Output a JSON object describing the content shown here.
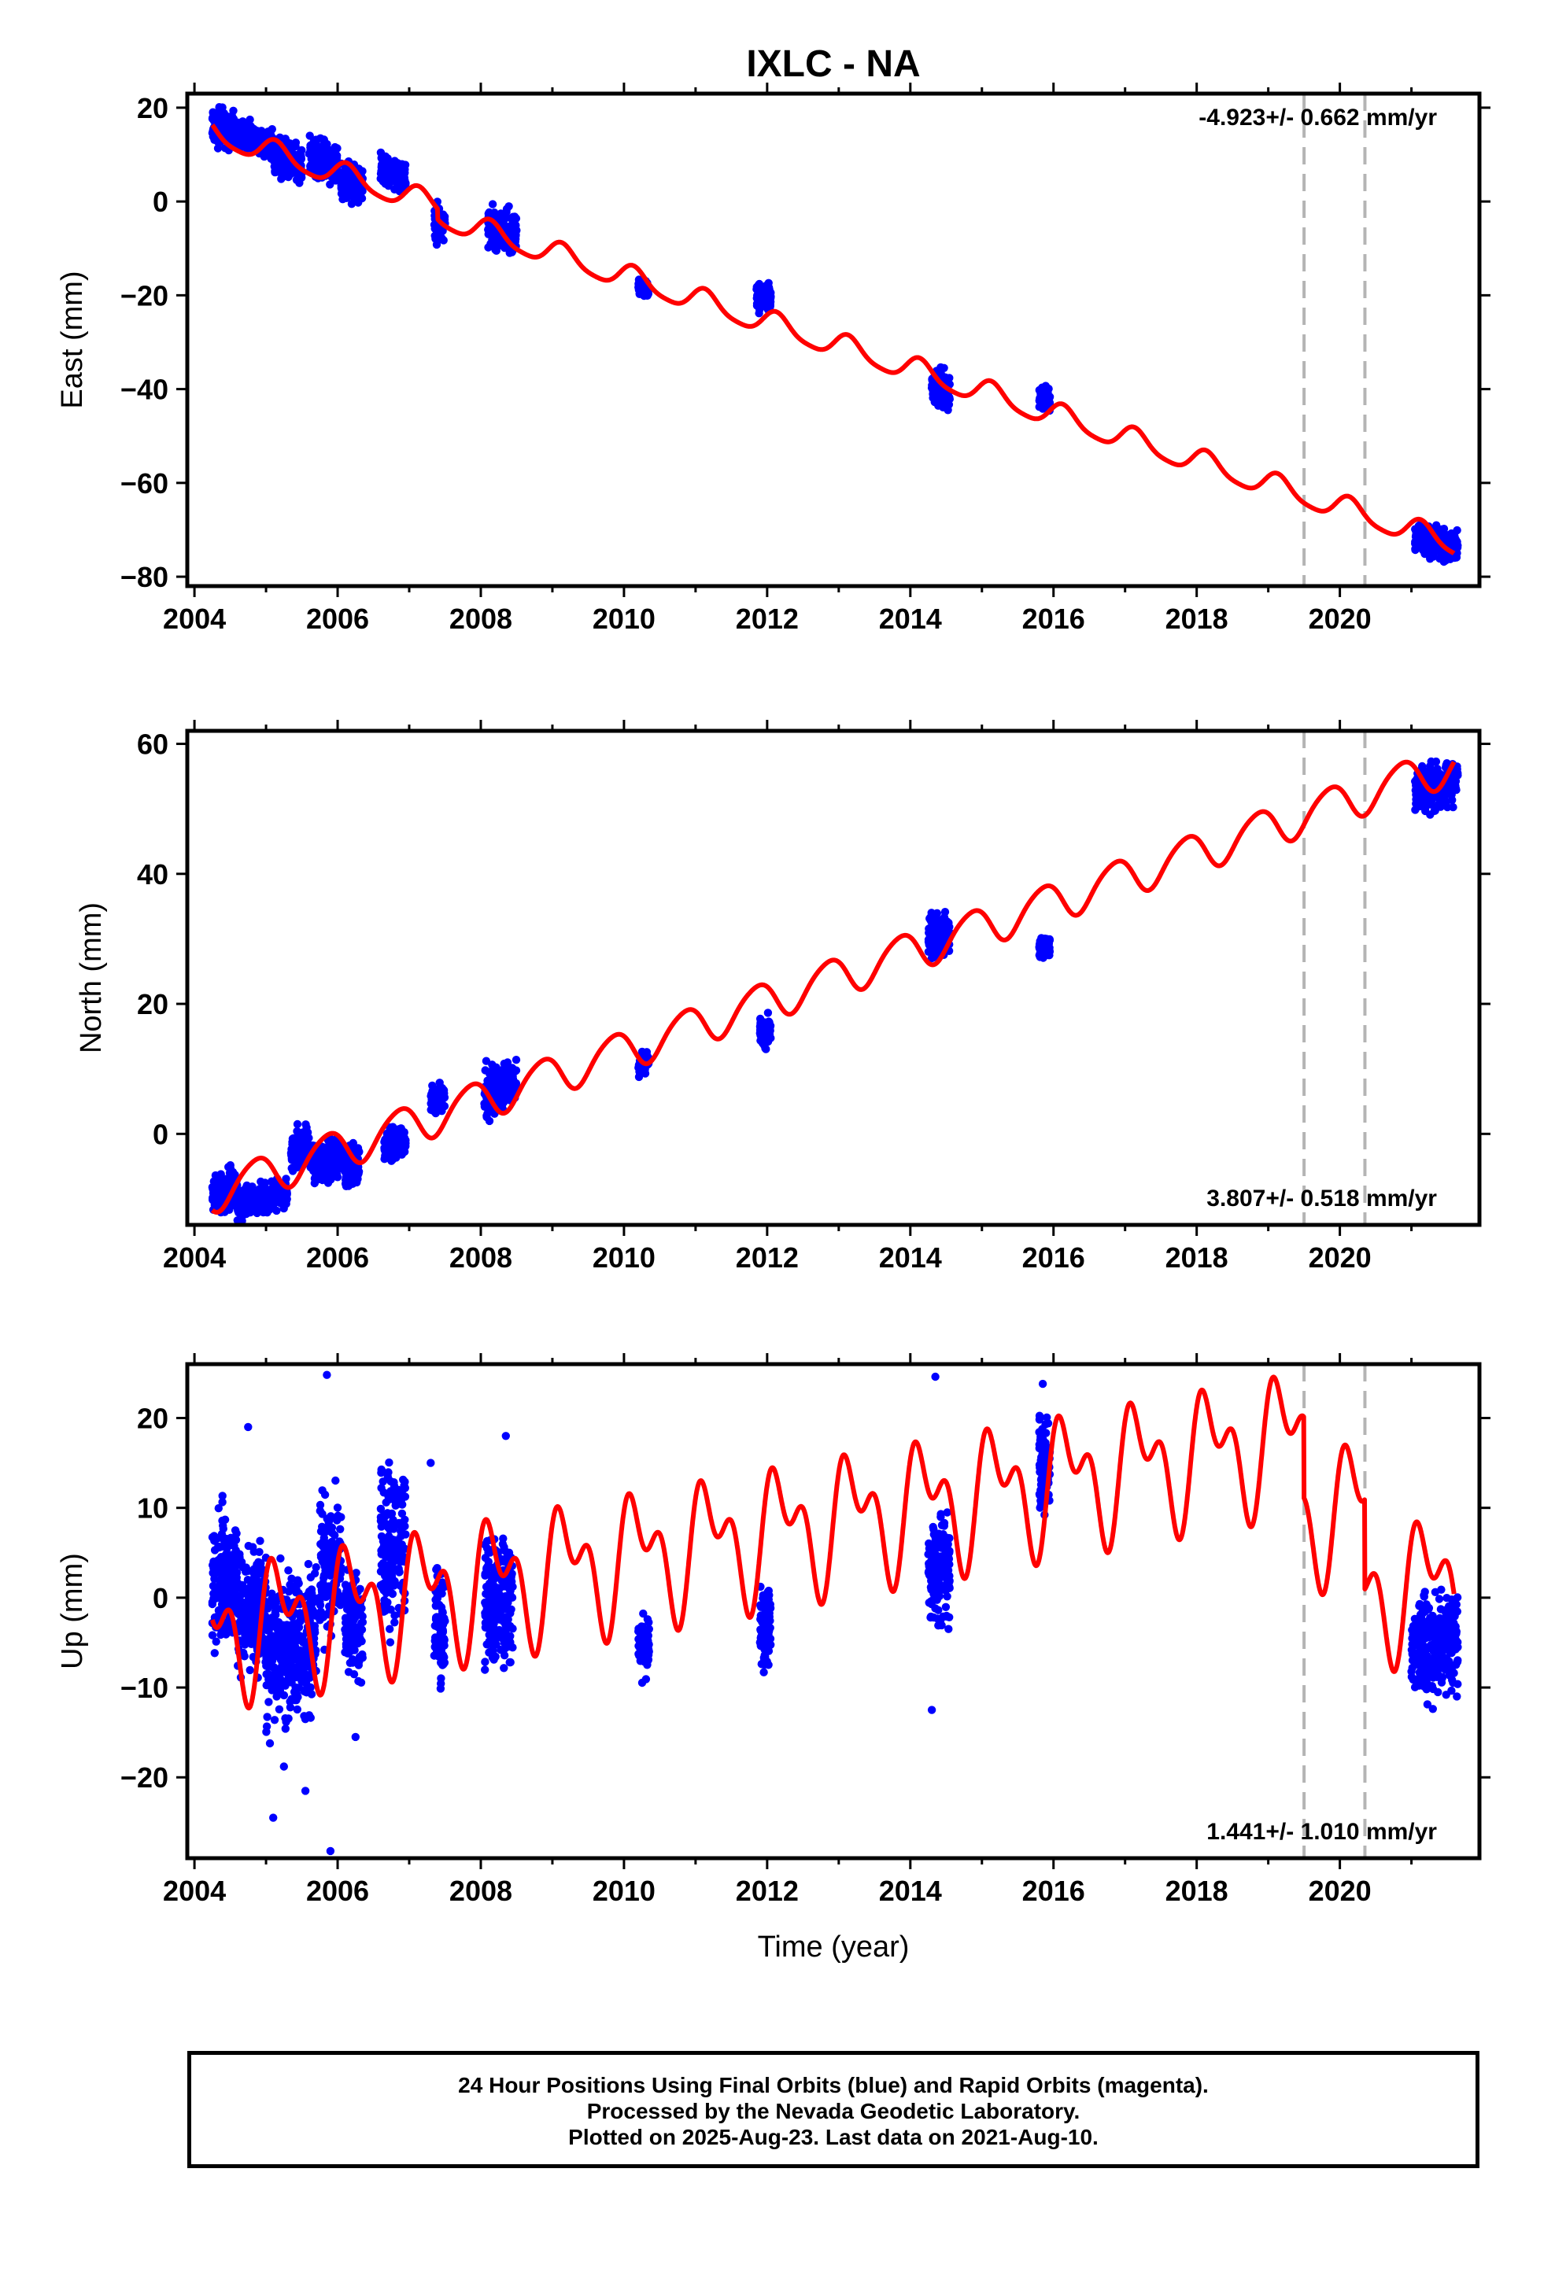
{
  "title": "IXLC - NA",
  "xlabel": "Time (year)",
  "colors": {
    "final_orbits": "#0000ff",
    "model": "#ff0000",
    "breaks": "#b4b4b4"
  },
  "footer": {
    "line1": "24 Hour Positions Using Final Orbits (blue) and Rapid Orbits (magenta).",
    "line2": "Processed by the Nevada Geodetic Laboratory.",
    "line3": "Plotted on 2025-Aug-23. Last data on 2021-Aug-10."
  },
  "chart_data": [
    {
      "type": "scatter",
      "name": "east",
      "ylabel": "East (mm)",
      "rate_label": "-4.923+/- 0.662 mm/yr",
      "rate_label_position": "top-right",
      "xlim": [
        2003.9,
        2021.95
      ],
      "ylim": [
        -82,
        23
      ],
      "xticks": [
        2004,
        2006,
        2008,
        2010,
        2012,
        2014,
        2016,
        2018,
        2020
      ],
      "yticks": [
        -80,
        -60,
        -40,
        -20,
        0,
        20
      ],
      "ytick_labels": [
        "−80",
        "−60",
        "−40",
        "−20",
        "0",
        "20"
      ],
      "break_lines": [
        2019.5,
        2020.35
      ],
      "model": {
        "t0": 2004.25,
        "y0": 14.5,
        "rate": -4.923,
        "annual_amp": 2.5,
        "annual_phase": 0.7,
        "semiannual_amp": 0.5,
        "semiannual_phase": 0.2,
        "offsets": [
          {
            "t": 2007.4,
            "dy": -2.2
          }
        ]
      },
      "clusters": [
        {
          "start": 2004.25,
          "end": 2004.55,
          "center": 15.5,
          "spread": 3.5
        },
        {
          "start": 2004.6,
          "end": 2005.1,
          "center": 13.5,
          "spread": 2.5
        },
        {
          "start": 2005.1,
          "end": 2005.5,
          "center": 8.5,
          "spread": 3.5
        },
        {
          "start": 2005.6,
          "end": 2006.0,
          "center": 8.5,
          "spread": 3.5
        },
        {
          "start": 2006.05,
          "end": 2006.35,
          "center": 4.0,
          "spread": 3.5
        },
        {
          "start": 2006.6,
          "end": 2006.95,
          "center": 6.0,
          "spread": 3.0
        },
        {
          "start": 2007.35,
          "end": 2007.5,
          "center": -5.0,
          "spread": 3.0
        },
        {
          "start": 2008.1,
          "end": 2008.5,
          "center": -6.0,
          "spread": 3.5
        },
        {
          "start": 2010.2,
          "end": 2010.35,
          "center": -18.5,
          "spread": 1.5
        },
        {
          "start": 2011.85,
          "end": 2012.05,
          "center": -20.5,
          "spread": 2.5
        },
        {
          "start": 2014.3,
          "end": 2014.55,
          "center": -40.0,
          "spread": 3.0
        },
        {
          "start": 2015.8,
          "end": 2015.95,
          "center": -42.0,
          "spread": 2.5
        },
        {
          "start": 2021.05,
          "end": 2021.65,
          "center": -72.5,
          "spread": 2.8
        }
      ]
    },
    {
      "type": "scatter",
      "name": "north",
      "ylabel": "North (mm)",
      "rate_label": "3.807+/- 0.518 mm/yr",
      "rate_label_position": "bottom-right",
      "xlim": [
        2003.9,
        2021.95
      ],
      "ylim": [
        -14,
        62
      ],
      "xticks": [
        2004,
        2006,
        2008,
        2010,
        2012,
        2014,
        2016,
        2018,
        2020
      ],
      "yticks": [
        0,
        20,
        40,
        60
      ],
      "ytick_labels": [
        "0",
        "20",
        "40",
        "60"
      ],
      "break_lines": [
        2019.5,
        2020.35
      ],
      "model": {
        "t0": 2004.25,
        "y0": -9.0,
        "rate": 3.807,
        "annual_amp": 3.0,
        "annual_phase": 2.5,
        "semiannual_amp": 0.4,
        "semiannual_phase": 1.0,
        "offsets": []
      },
      "clusters": [
        {
          "start": 2004.25,
          "end": 2004.6,
          "center": -9.0,
          "spread": 2.5
        },
        {
          "start": 2004.6,
          "end": 2005.3,
          "center": -10.0,
          "spread": 2.0
        },
        {
          "start": 2005.35,
          "end": 2005.6,
          "center": -2.5,
          "spread": 2.5
        },
        {
          "start": 2005.6,
          "end": 2006.05,
          "center": -4.0,
          "spread": 2.5
        },
        {
          "start": 2006.1,
          "end": 2006.3,
          "center": -5.0,
          "spread": 3.0
        },
        {
          "start": 2006.65,
          "end": 2006.95,
          "center": -1.5,
          "spread": 2.0
        },
        {
          "start": 2007.3,
          "end": 2007.5,
          "center": 5.5,
          "spread": 2.0
        },
        {
          "start": 2008.05,
          "end": 2008.5,
          "center": 7.0,
          "spread": 3.0
        },
        {
          "start": 2010.2,
          "end": 2010.35,
          "center": 11.0,
          "spread": 1.5
        },
        {
          "start": 2011.9,
          "end": 2012.05,
          "center": 15.5,
          "spread": 1.8
        },
        {
          "start": 2014.25,
          "end": 2014.55,
          "center": 30.5,
          "spread": 3.0
        },
        {
          "start": 2015.8,
          "end": 2015.95,
          "center": 28.5,
          "spread": 1.5
        },
        {
          "start": 2021.05,
          "end": 2021.65,
          "center": 53.5,
          "spread": 3.0
        }
      ]
    },
    {
      "type": "scatter",
      "name": "up",
      "ylabel": "Up (mm)",
      "rate_label": "1.441+/- 1.010 mm/yr",
      "rate_label_position": "bottom-right",
      "xlim": [
        2003.9,
        2021.95
      ],
      "ylim": [
        -29,
        26
      ],
      "xticks": [
        2004,
        2006,
        2008,
        2010,
        2012,
        2014,
        2016,
        2018,
        2020
      ],
      "yticks": [
        -20,
        -10,
        0,
        10,
        20
      ],
      "ytick_labels": [
        "−20",
        "−10",
        "0",
        "10",
        "20"
      ],
      "break_lines": [
        2019.5,
        2020.35
      ],
      "model": {
        "t0": 2004.25,
        "y0": -4.0,
        "rate": 1.441,
        "annual_amp": 5.5,
        "annual_phase": 0.3,
        "semiannual_amp": 4.0,
        "semiannual_phase": 1.2,
        "offsets": [
          {
            "t": 2019.5,
            "dy": -9.0
          },
          {
            "t": 2020.35,
            "dy": -10.0
          }
        ]
      },
      "clusters": [
        {
          "start": 2004.25,
          "end": 2004.6,
          "center": 2.0,
          "spread": 6.0
        },
        {
          "start": 2004.6,
          "end": 2005.0,
          "center": -1.0,
          "spread": 6.0
        },
        {
          "start": 2005.0,
          "end": 2005.4,
          "center": -6.0,
          "spread": 7.0
        },
        {
          "start": 2005.4,
          "end": 2005.7,
          "center": -5.0,
          "spread": 7.0
        },
        {
          "start": 2005.75,
          "end": 2006.05,
          "center": 4.0,
          "spread": 7.0
        },
        {
          "start": 2006.1,
          "end": 2006.35,
          "center": -3.0,
          "spread": 5.0
        },
        {
          "start": 2006.6,
          "end": 2006.95,
          "center": 6.0,
          "spread": 8.0
        },
        {
          "start": 2007.35,
          "end": 2007.5,
          "center": -3.0,
          "spread": 5.0
        },
        {
          "start": 2008.05,
          "end": 2008.45,
          "center": 0.0,
          "spread": 6.0
        },
        {
          "start": 2010.2,
          "end": 2010.35,
          "center": -5.5,
          "spread": 2.5
        },
        {
          "start": 2011.9,
          "end": 2012.05,
          "center": -3.5,
          "spread": 4.0
        },
        {
          "start": 2014.25,
          "end": 2014.55,
          "center": 3.5,
          "spread": 6.0
        },
        {
          "start": 2015.8,
          "end": 2015.95,
          "center": 14.5,
          "spread": 5.0
        },
        {
          "start": 2021.0,
          "end": 2021.65,
          "center": -5.0,
          "spread": 5.0
        }
      ],
      "outliers": [
        {
          "x": 2005.85,
          "y": 24.8
        },
        {
          "x": 2005.9,
          "y": -28.2
        },
        {
          "x": 2005.1,
          "y": -24.5
        },
        {
          "x": 2005.55,
          "y": -21.5
        },
        {
          "x": 2005.25,
          "y": -18.8
        },
        {
          "x": 2004.75,
          "y": 19.0
        },
        {
          "x": 2014.35,
          "y": 24.6
        },
        {
          "x": 2014.3,
          "y": -12.5
        },
        {
          "x": 2015.85,
          "y": 23.8
        },
        {
          "x": 2008.35,
          "y": 18.0
        },
        {
          "x": 2006.25,
          "y": -15.5
        },
        {
          "x": 2007.3,
          "y": 15.0
        }
      ]
    }
  ]
}
